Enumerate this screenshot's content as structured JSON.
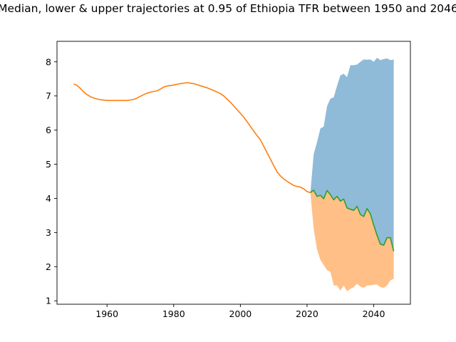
{
  "chart_data": {
    "type": "area",
    "title": "Median, lower & upper trajectories at 0.95 of Ethiopia TFR between 1950 and 2046",
    "xlabel": "",
    "ylabel": "",
    "xlim": [
      1945,
      2051
    ],
    "ylim": [
      0.9,
      8.6
    ],
    "xticks": [
      1960,
      1980,
      2000,
      2020,
      2040
    ],
    "yticks": [
      1,
      2,
      3,
      4,
      5,
      6,
      7,
      8
    ],
    "grid": false,
    "colors": {
      "history": "#ff7f0e",
      "median": "#2ca02c",
      "upper_band": "#1f77b4",
      "lower_band": "#ff7f0e"
    },
    "series": [
      {
        "role": "history",
        "x": [
          1950,
          1951,
          1952,
          1953,
          1954,
          1955,
          1956,
          1957,
          1958,
          1959,
          1960,
          1962,
          1964,
          1966,
          1967,
          1968,
          1969,
          1970,
          1971,
          1972,
          1973,
          1974,
          1975,
          1976,
          1977,
          1978,
          1980,
          1982,
          1984,
          1986,
          1988,
          1990,
          1992,
          1994,
          1995,
          1996,
          1997,
          1998,
          1999,
          2000,
          2001,
          2002,
          2003,
          2004,
          2005,
          2006,
          2007,
          2008,
          2009,
          2010,
          2011,
          2012,
          2013,
          2014,
          2015,
          2016,
          2017,
          2018,
          2019,
          2020,
          2021
        ],
        "values": [
          7.35,
          7.31,
          7.22,
          7.12,
          7.04,
          6.98,
          6.94,
          6.91,
          6.89,
          6.88,
          6.87,
          6.87,
          6.87,
          6.87,
          6.88,
          6.9,
          6.94,
          6.99,
          7.04,
          7.08,
          7.11,
          7.13,
          7.15,
          7.2,
          7.26,
          7.29,
          7.32,
          7.36,
          7.39,
          7.36,
          7.3,
          7.24,
          7.16,
          7.07,
          7.0,
          6.91,
          6.82,
          6.71,
          6.6,
          6.49,
          6.38,
          6.25,
          6.11,
          5.97,
          5.84,
          5.72,
          5.53,
          5.34,
          5.15,
          4.96,
          4.78,
          4.66,
          4.57,
          4.5,
          4.44,
          4.38,
          4.35,
          4.33,
          4.28,
          4.2,
          4.17
        ]
      },
      {
        "name": "median",
        "x": [
          2021,
          2022,
          2023,
          2024,
          2025,
          2026,
          2027,
          2028,
          2029,
          2030,
          2031,
          2032,
          2033,
          2034,
          2035,
          2036,
          2037,
          2038,
          2039,
          2040,
          2041,
          2042,
          2043,
          2044,
          2045,
          2046
        ],
        "values": [
          4.17,
          4.24,
          4.06,
          4.09,
          3.99,
          4.23,
          4.11,
          3.96,
          4.06,
          3.92,
          3.98,
          3.72,
          3.68,
          3.65,
          3.77,
          3.53,
          3.47,
          3.7,
          3.55,
          3.22,
          2.92,
          2.66,
          2.63,
          2.85,
          2.85,
          2.45
        ]
      },
      {
        "name": "upper",
        "x": [
          2021,
          2022,
          2023,
          2024,
          2025,
          2026,
          2027,
          2028,
          2029,
          2030,
          2031,
          2032,
          2033,
          2034,
          2035,
          2036,
          2037,
          2038,
          2039,
          2040,
          2041,
          2042,
          2043,
          2044,
          2045,
          2046
        ],
        "values": [
          4.17,
          5.3,
          5.65,
          6.05,
          6.1,
          6.7,
          6.92,
          6.96,
          7.3,
          7.6,
          7.65,
          7.55,
          7.9,
          7.9,
          7.92,
          8.0,
          8.07,
          8.06,
          8.07,
          8.0,
          8.12,
          8.05,
          8.08,
          8.1,
          8.05,
          8.07
        ]
      },
      {
        "name": "lower",
        "x": [
          2021,
          2022,
          2023,
          2024,
          2025,
          2026,
          2027,
          2028,
          2029,
          2030,
          2031,
          2032,
          2033,
          2034,
          2035,
          2036,
          2037,
          2038,
          2039,
          2040,
          2041,
          2042,
          2043,
          2044,
          2045,
          2046
        ],
        "values": [
          4.17,
          3.1,
          2.5,
          2.2,
          2.05,
          1.9,
          1.85,
          1.45,
          1.45,
          1.3,
          1.45,
          1.28,
          1.35,
          1.4,
          1.5,
          1.42,
          1.38,
          1.45,
          1.45,
          1.47,
          1.48,
          1.4,
          1.38,
          1.45,
          1.6,
          1.65
        ]
      }
    ]
  }
}
